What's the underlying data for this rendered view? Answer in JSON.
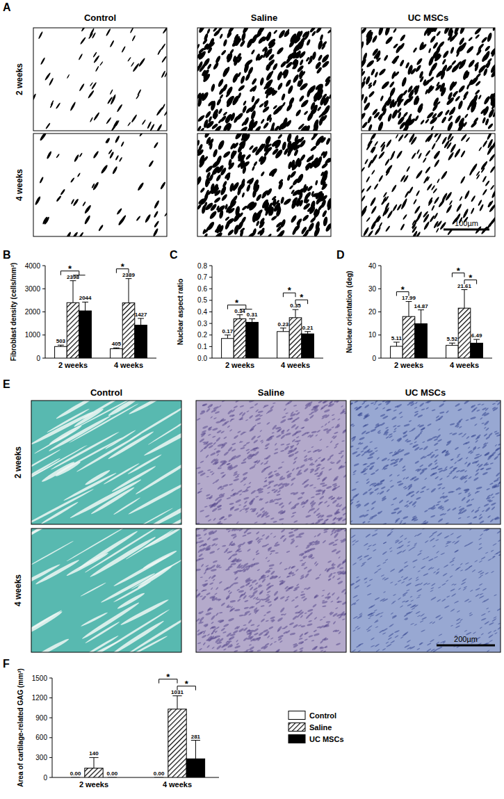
{
  "figure": {
    "panels": [
      {
        "title": "A",
        "columns": [
          "Control",
          "Saline",
          "UC MSCs"
        ],
        "rows": [
          "2 weeks",
          "4 weeks"
        ],
        "scale_bar": "100µm"
      },
      {
        "title": "E",
        "columns": [
          "Control",
          "Saline",
          "UC MSCs"
        ],
        "rows": [
          "2 weeks",
          "4 weeks"
        ],
        "scale_bar": "200µm"
      }
    ]
  },
  "chart_data": [
    {
      "title": "B",
      "type": "bar",
      "y_label": "Fibroblast density (cells/mm²)",
      "categories": [
        "2 weeks",
        "4 weeks"
      ],
      "ylim": [
        0,
        4000
      ],
      "yticks": [
        0,
        1000,
        2000,
        3000,
        4000
      ],
      "data_labels": true,
      "series": [
        {
          "color": "#ffffff",
          "values": [
            503,
            405
          ],
          "errors": [
            60,
            40
          ]
        },
        {
          "color": "#000000",
          "line_style": "hatched",
          "values": [
            2398,
            2389
          ],
          "errors": [
            950,
            1050
          ]
        },
        {
          "color": "#000000",
          "values": [
            2044,
            1427
          ],
          "errors": [
            380,
            290
          ]
        }
      ],
      "annotations": [
        {
          "category": 0,
          "from": 0,
          "to": [
            1,
            2
          ],
          "label": "*"
        },
        {
          "category": 1,
          "from": 0,
          "to": [
            1
          ],
          "label": "*"
        }
      ]
    },
    {
      "title": "C",
      "type": "bar",
      "y_label": "Nuclear aspect ratio",
      "categories": [
        "2 weeks",
        "4 weeks"
      ],
      "ylim": [
        0,
        0.8
      ],
      "yticks": [
        {
          "value": 0,
          "label": "0.0"
        },
        0.1,
        0.2,
        0.3,
        0.4,
        0.5,
        0.6,
        0.7,
        0.8
      ],
      "data_labels": true,
      "series": [
        {
          "color": "#ffffff",
          "values": [
            0.17,
            0.23
          ],
          "errors": [
            0.03,
            0.03
          ]
        },
        {
          "color": "#000000",
          "line_style": "hatched",
          "values": [
            0.34,
            0.35
          ],
          "errors": [
            0.035,
            0.07
          ]
        },
        {
          "color": "#000000",
          "values": [
            0.31,
            0.21
          ],
          "errors": [
            0.03,
            0.02
          ]
        }
      ],
      "annotations": [
        {
          "category": 0,
          "from": 0,
          "to": [
            1,
            2
          ],
          "label": "*"
        },
        {
          "category": 1,
          "from": 1,
          "to": [
            2
          ],
          "label": "*"
        },
        {
          "category": 1,
          "from": 0,
          "to": [
            1
          ],
          "label": "*"
        }
      ]
    },
    {
      "title": "D",
      "type": "bar",
      "y_label": "Nuclear orientation (deg)",
      "categories": [
        "2 weeks",
        "4 weeks"
      ],
      "ylim": [
        0,
        40
      ],
      "yticks": [
        0,
        10,
        20,
        30,
        40
      ],
      "data_labels": true,
      "series": [
        {
          "color": "#ffffff",
          "values": [
            5.11,
            5.52
          ],
          "errors": [
            1.8,
            1.0
          ]
        },
        {
          "color": "#000000",
          "line_style": "hatched",
          "values": [
            17.99,
            21.61
          ],
          "errors": [
            6.5,
            8.0
          ]
        },
        {
          "color": "#000000",
          "values": [
            14.87,
            6.49
          ],
          "errors": [
            6.0,
            1.6
          ]
        }
      ],
      "annotations": [
        {
          "category": 0,
          "from": 0,
          "to": [
            1
          ],
          "label": "*"
        },
        {
          "category": 1,
          "from": 1,
          "to": [
            2
          ],
          "label": "*"
        },
        {
          "category": 1,
          "from": 0,
          "to": [
            1
          ],
          "label": "*"
        }
      ]
    },
    {
      "title": "F",
      "type": "bar",
      "y_label": "Area of cartilage-related GAG (mm²)",
      "categories": [
        "2 weeks",
        "4 weeks"
      ],
      "ylim": [
        0,
        1500
      ],
      "yticks": [
        0,
        300,
        600,
        900,
        1200,
        1500
      ],
      "data_labels": true,
      "legend": "right",
      "series": [
        {
          "name": "Control",
          "color": "#ffffff",
          "values": [
            0,
            0
          ],
          "value_labels": [
            "0.00",
            "0.00"
          ],
          "errors": [
            0,
            0
          ]
        },
        {
          "name": "Saline",
          "color": "#000000",
          "line_style": "hatched",
          "values": [
            140,
            1031
          ],
          "errors": [
            160,
            200
          ]
        },
        {
          "name": "UC MSCs",
          "color": "#000000",
          "values": [
            0,
            281
          ],
          "value_labels": [
            "0.00",
            "281"
          ],
          "errors": [
            0,
            280
          ]
        }
      ],
      "annotations": [
        {
          "category": 1,
          "from": 1,
          "to": [
            2
          ],
          "label": "*"
        },
        {
          "category": 1,
          "from": 0,
          "to": [
            1
          ],
          "label": "*"
        }
      ]
    }
  ]
}
